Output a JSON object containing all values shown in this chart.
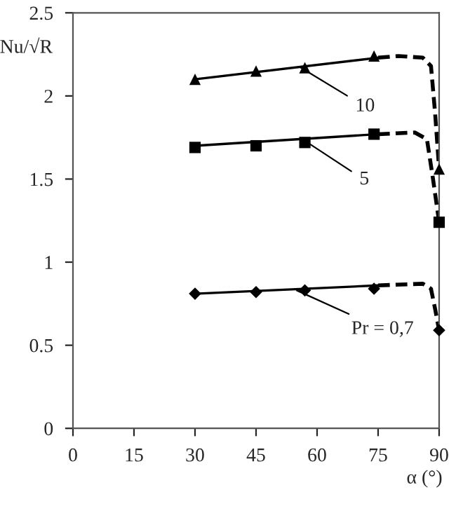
{
  "chart_data": {
    "type": "scatter",
    "xlabel": "α (°)",
    "ylabel": "Nu/√R",
    "xlim": [
      0,
      90
    ],
    "xticks": [
      0,
      15,
      30,
      45,
      60,
      75,
      90
    ],
    "ylim": [
      0,
      2.5
    ],
    "yticks": [
      0,
      0.5,
      1,
      1.5,
      2,
      2.5
    ],
    "grid": false,
    "legend": false,
    "series": [
      {
        "marker": "triangle",
        "color": "#000000",
        "x": [
          30,
          45,
          57,
          74,
          90
        ],
        "values": [
          2.1,
          2.15,
          2.17,
          2.24,
          1.56
        ]
      },
      {
        "marker": "square",
        "color": "#000000",
        "x": [
          30,
          45,
          57,
          74,
          90
        ],
        "values": [
          1.69,
          1.7,
          1.72,
          1.77,
          1.24
        ]
      },
      {
        "marker": "diamond",
        "color": "#000000",
        "x": [
          30,
          45,
          57,
          74,
          90
        ],
        "values": [
          0.81,
          0.82,
          0.83,
          0.84,
          0.59
        ]
      },
      {
        "type": "line",
        "line_style": "solid",
        "color": "#000000",
        "x": [
          30,
          75
        ],
        "values": [
          2.1,
          2.23
        ]
      },
      {
        "type": "line",
        "line_style": "solid",
        "color": "#000000",
        "x": [
          30,
          75
        ],
        "values": [
          1.7,
          1.77
        ]
      },
      {
        "type": "line",
        "line_style": "solid",
        "color": "#000000",
        "x": [
          30,
          75
        ],
        "values": [
          0.81,
          0.86
        ]
      },
      {
        "type": "line",
        "line_style": "dashed",
        "color": "#000000",
        "x": [
          75,
          80,
          86,
          88,
          89,
          90
        ],
        "values": [
          2.23,
          2.24,
          2.23,
          2.18,
          1.9,
          1.56
        ]
      },
      {
        "type": "line",
        "line_style": "dashed",
        "color": "#000000",
        "x": [
          75,
          84,
          87,
          88.5,
          90
        ],
        "values": [
          1.77,
          1.78,
          1.74,
          1.5,
          1.24
        ]
      },
      {
        "type": "line",
        "line_style": "dashed",
        "color": "#000000",
        "x": [
          75,
          86,
          88,
          89,
          90
        ],
        "values": [
          0.86,
          0.87,
          0.84,
          0.72,
          0.59
        ]
      }
    ],
    "annotations": [
      {
        "text": "10",
        "x": 56,
        "y": 2.17
      },
      {
        "text": "5",
        "x": 57,
        "y": 1.73
      },
      {
        "text": "Pr = 0,7",
        "x": 55,
        "y": 0.83
      }
    ]
  }
}
